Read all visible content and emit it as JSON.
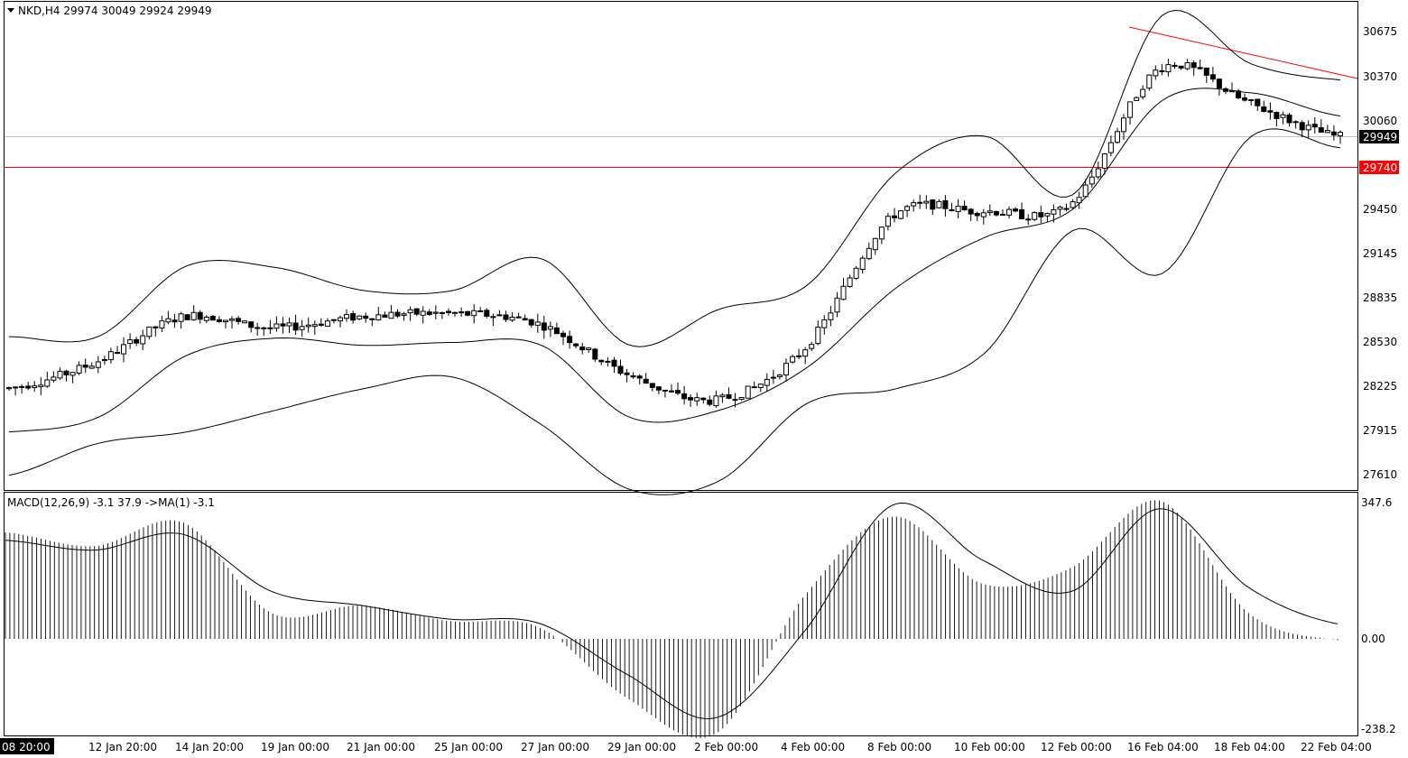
{
  "header": {
    "symbol_line": "NKD,H4  29974 30049 29924 29949",
    "macd_line": "MACD(12,26,9) -3.1 37.9  ->MA(1) -3.1"
  },
  "price_axis": {
    "ticks": [
      "30675",
      "30370",
      "30060",
      "29450",
      "29145",
      "28835",
      "28530",
      "28225",
      "27915",
      "27610"
    ],
    "current_price": "29949",
    "level_price": "29740"
  },
  "macd_axis": {
    "ticks": [
      "347.6",
      "0.00",
      "-238.2"
    ]
  },
  "time_axis": {
    "labels": [
      "08 20:00",
      "12 Jan 20:00",
      "14 Jan 20:00",
      "19 Jan 00:00",
      "21 Jan 00:00",
      "25 Jan 00:00",
      "27 Jan 00:00",
      "29 Jan 00:00",
      "2 Feb 00:00",
      "4 Feb 00:00",
      "8 Feb 00:00",
      "10 Feb 00:00",
      "12 Feb 00:00",
      "16 Feb 04:00",
      "18 Feb 04:00",
      "22 Feb 04:00"
    ]
  },
  "colors": {
    "background": "#ffffff",
    "axis": "#000000",
    "level_line": "#ff0000",
    "trendline": "#ff0000",
    "current_price_line": "#c0c0c0",
    "current_price_label_bg": "#000000",
    "level_label_bg": "#ff0000"
  },
  "chart_data": [
    {
      "type": "candlestick",
      "symbol": "NKD",
      "timeframe": "H4",
      "last_bar": {
        "open": 29974,
        "high": 30049,
        "low": 29924,
        "close": 29949
      },
      "y_range": [
        27480,
        30850
      ],
      "horizontal_level": 29740,
      "trendline": {
        "from": {
          "x": "16 Feb 00:00",
          "y": 30790
        },
        "to": {
          "x": "22 Feb 04:00",
          "y": 30340
        }
      },
      "x": [
        "08 20:00",
        "12 Jan 20:00",
        "14 Jan 20:00",
        "19 Jan 00:00",
        "21 Jan 00:00",
        "25 Jan 00:00",
        "27 Jan 00:00",
        "29 Jan 00:00",
        "2 Feb 00:00",
        "4 Feb 00:00",
        "8 Feb 00:00",
        "10 Feb 00:00",
        "12 Feb 00:00",
        "16 Feb 04:00",
        "18 Feb 04:00",
        "22 Feb 04:00"
      ],
      "close": [
        28200,
        28380,
        28700,
        28620,
        28700,
        28720,
        28650,
        28300,
        28120,
        28480,
        29400,
        29430,
        29480,
        30420,
        30180,
        29949
      ],
      "bollinger_upper": [
        28560,
        28560,
        29050,
        29040,
        28880,
        28880,
        29100,
        28500,
        28750,
        28920,
        29700,
        29950,
        29550,
        30790,
        30450,
        30340
      ],
      "bollinger_middle": [
        27900,
        28000,
        28430,
        28550,
        28500,
        28520,
        28500,
        28000,
        28050,
        28350,
        28900,
        29250,
        29450,
        30200,
        30250,
        30090
      ],
      "bollinger_lower": [
        27600,
        27820,
        27900,
        28050,
        28200,
        28280,
        27950,
        27500,
        27560,
        28100,
        28200,
        28450,
        29300,
        29000,
        29950,
        29870
      ]
    },
    {
      "type": "histogram",
      "indicator": "MACD(12,26,9)",
      "values_shown": {
        "macd": -3.1,
        "signal": 37.9,
        "ma": -3.1
      },
      "y_range": [
        -238.2,
        347.6
      ],
      "x": [
        "08 20:00",
        "12 Jan 20:00",
        "14 Jan 20:00",
        "19 Jan 00:00",
        "21 Jan 00:00",
        "25 Jan 00:00",
        "27 Jan 00:00",
        "29 Jan 00:00",
        "2 Feb 00:00",
        "4 Feb 00:00",
        "8 Feb 00:00",
        "10 Feb 00:00",
        "12 Feb 00:00",
        "16 Feb 04:00",
        "18 Feb 04:00",
        "22 Feb 04:00"
      ],
      "macd": [
        270,
        235,
        295,
        65,
        85,
        45,
        30,
        -150,
        -240,
        110,
        310,
        140,
        180,
        350,
        65,
        -3.1
      ],
      "signal": [
        250,
        225,
        265,
        120,
        85,
        50,
        40,
        -90,
        -200,
        20,
        340,
        200,
        120,
        330,
        130,
        37.9
      ]
    }
  ]
}
